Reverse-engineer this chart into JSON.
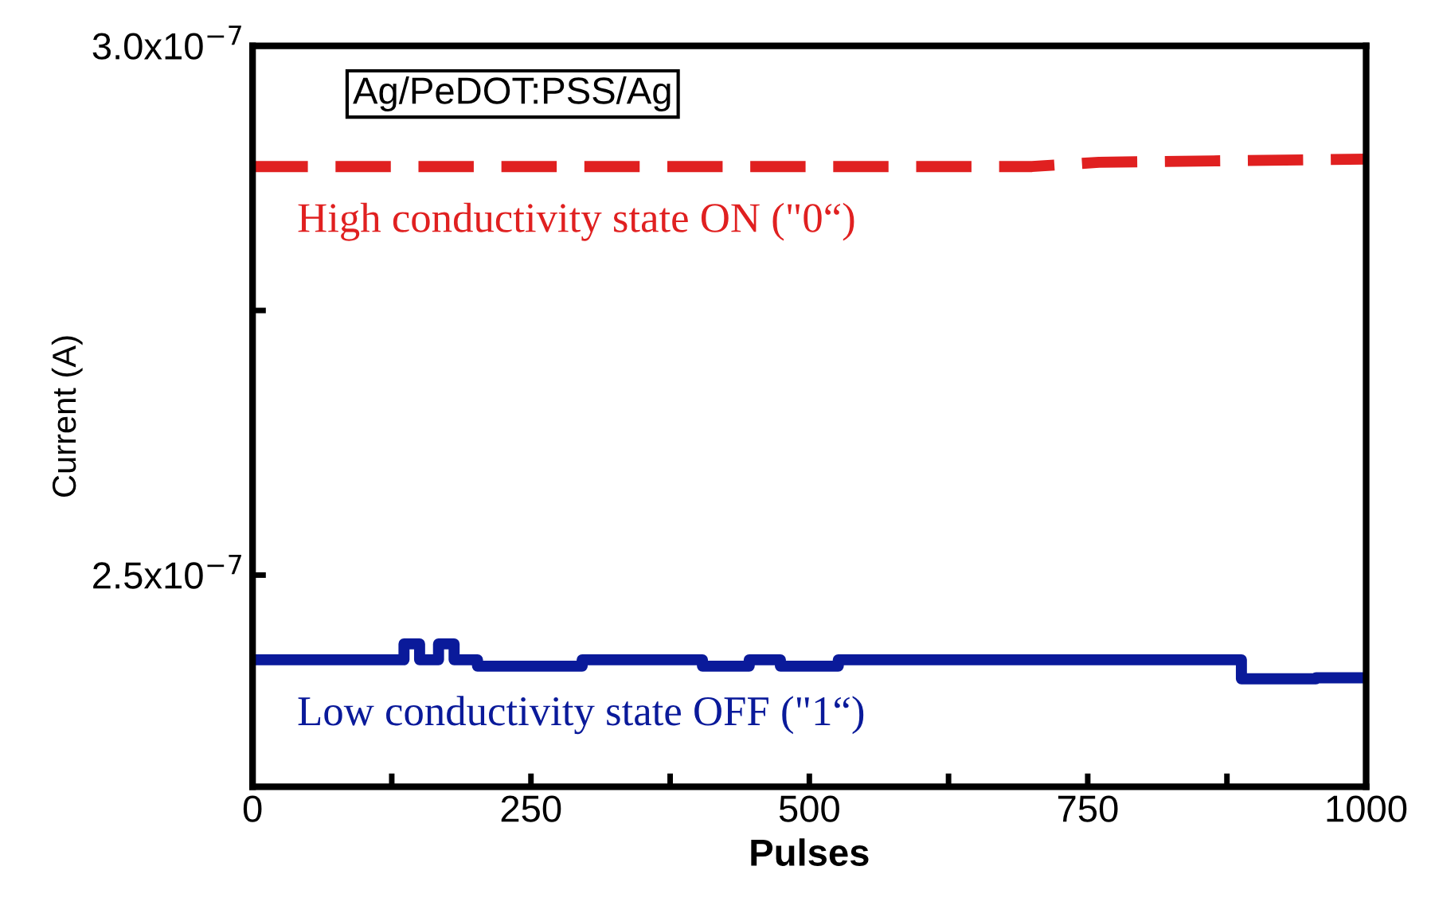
{
  "chart_data": {
    "type": "line",
    "xlabel": "Pulses",
    "ylabel": "Current (A)",
    "annotations": [
      "Ag/PeDOT:PSS/Ag"
    ],
    "xlim": [
      0,
      1000
    ],
    "xticks": [
      0,
      {
        "value": 125,
        "label": null
      },
      250,
      {
        "value": 375,
        "label": null
      },
      500,
      {
        "value": 625,
        "label": null
      },
      750,
      {
        "value": 875,
        "label": null
      },
      1000
    ],
    "ylim": [
      2.3e-07,
      3e-07
    ],
    "yticks": [
      {
        "value": 2.5e-07,
        "label": "2.5x10$^{−7}$"
      },
      {
        "value": 2.75e-07,
        "label": null
      },
      {
        "value": 3e-07,
        "label": "3.0x10$^{−7}$"
      }
    ],
    "grid": false,
    "legend": false,
    "series": [
      {
        "name": "High conductivity state ON (\"0“)",
        "line_style": "dashed",
        "color": "#e02020",
        "x": [
          0,
          700,
          760,
          1000
        ],
        "values": [
          2.886e-07,
          2.886e-07,
          2.89e-07,
          2.893e-07
        ]
      },
      {
        "name": "Low conductivity state OFF (\"1“)",
        "type": "step",
        "line_style": "solid",
        "color": "#0a1a9a",
        "x": [
          0,
          136,
          150,
          167,
          181,
          202,
          296,
          404,
          446,
          474,
          526,
          888,
          955,
          1000
        ],
        "values": [
          2.42e-07,
          2.435e-07,
          2.42e-07,
          2.435e-07,
          2.42e-07,
          2.414e-07,
          2.42e-07,
          2.414e-07,
          2.42e-07,
          2.414e-07,
          2.42e-07,
          2.402e-07,
          2.403e-07,
          2.403e-07
        ]
      }
    ]
  }
}
